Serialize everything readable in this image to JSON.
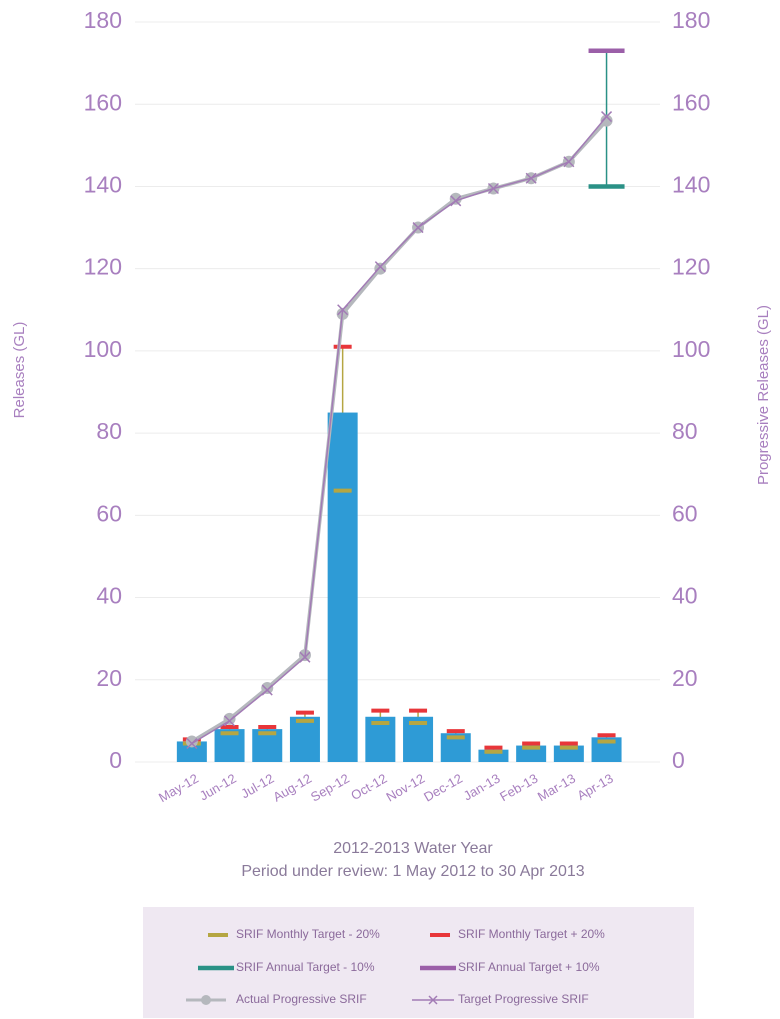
{
  "chart_data": {
    "type": "bar",
    "xlabel": [
      "2012-2013 Water Year",
      "Period under review: 1 May 2012 to 30 Apr 2013"
    ],
    "ylabel": "Releases (GL)",
    "y2label": "Progressive Releases (GL)",
    "categories": [
      "May-12",
      "Jun-12",
      "Jul-12",
      "Aug-12",
      "Sep-12",
      "Oct-12",
      "Nov-12",
      "Dec-12",
      "Jan-13",
      "Feb-13",
      "Mar-13",
      "Apr-13"
    ],
    "ylim": [
      0,
      180
    ],
    "yticks": [
      0,
      20,
      40,
      60,
      80,
      100,
      120,
      140,
      160,
      180
    ],
    "y2lim": [
      0,
      180
    ],
    "y2ticks": [
      0,
      20,
      40,
      60,
      80,
      100,
      120,
      140,
      160,
      180
    ],
    "grid": true,
    "series": [
      {
        "style": "bar",
        "color": "#2e9bd6",
        "values": [
          5,
          8,
          8,
          11,
          85,
          11,
          11,
          7,
          3,
          4,
          4,
          6
        ]
      },
      {
        "name": "SRIF Monthly Target - 20%",
        "style": "cap",
        "color": "#b5a642",
        "values": [
          4.5,
          7,
          7,
          10,
          66,
          9.5,
          9.5,
          6,
          2.5,
          3.5,
          3.5,
          5
        ]
      },
      {
        "name": "SRIF Monthly Target + 20%",
        "style": "cap",
        "color": "#e8363a",
        "values": [
          5.5,
          8.5,
          8.5,
          12,
          101,
          12.5,
          12.5,
          7.5,
          3.5,
          4.5,
          4.5,
          6.5
        ]
      },
      {
        "name": "SRIF Annual Target - 10%",
        "style": "wide-cap",
        "color": "#2a9186",
        "axis": "y2",
        "values": [
          null,
          null,
          null,
          null,
          null,
          null,
          null,
          null,
          null,
          null,
          null,
          140
        ]
      },
      {
        "name": "SRIF Annual Target + 10%",
        "style": "wide-cap",
        "color": "#9b5fa8",
        "axis": "y2",
        "values": [
          null,
          null,
          null,
          null,
          null,
          null,
          null,
          null,
          null,
          null,
          null,
          173
        ]
      },
      {
        "name": "Actual Progressive SRIF",
        "style": "line-circle",
        "color": "#b5b8bd",
        "axis": "y2",
        "values": [
          5,
          10.5,
          18,
          26,
          109,
          120,
          130,
          137,
          139.5,
          142,
          146,
          156
        ]
      },
      {
        "name": "Target Progressive SRIF",
        "style": "line-x",
        "color": "#a27bb5",
        "axis": "y2",
        "values": [
          4.5,
          10,
          17.5,
          25.5,
          110,
          120.5,
          130,
          136.5,
          139.5,
          142,
          146,
          157
        ]
      }
    ]
  }
}
